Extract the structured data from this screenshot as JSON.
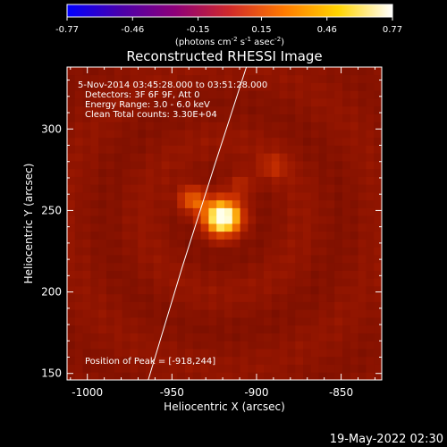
{
  "chart_data": {
    "type": "heatmap",
    "title": "Reconstructed RHESSI Image",
    "colorbar": {
      "ticks": [
        "-0.77",
        "-0.46",
        "-0.15",
        "0.15",
        "0.46",
        "0.77"
      ],
      "range": [
        -0.77,
        0.77
      ],
      "label_main": "(photons cm",
      "label_exp1": "-2",
      "label_s": " s",
      "label_exp2": "-1",
      "label_asec": " asec",
      "label_exp3": "-2",
      "label_close": ")",
      "colormap": [
        "#0000ff",
        "#4b00aa",
        "#8e0078",
        "#d02a2a",
        "#ff7a00",
        "#ffd400",
        "#ffffff"
      ]
    },
    "info": [
      "5-Nov-2014 03:45:28.000 to 03:51:28.000",
      "Detectors: 3F 6F 9F, Att 0",
      "Energy Range: 3.0 - 6.0 keV",
      "Clean    Total counts: 3.30E+04"
    ],
    "peak_label": "Position of Peak = [-918,244]",
    "xlabel": "Heliocentric X (arcsec)",
    "ylabel": "Heliocentric Y (arcsec)",
    "xlim": [
      -1012,
      -826
    ],
    "ylim": [
      146,
      338
    ],
    "xticks": [
      -1000,
      -950,
      -900,
      -850
    ],
    "xtick_labels": [
      "-1000",
      "-950",
      "-900",
      "-850"
    ],
    "yticks": [
      150,
      200,
      250,
      300
    ],
    "ytick_labels": [
      "150",
      "200",
      "250",
      "300"
    ],
    "sources": [
      {
        "x": -920,
        "y": 246,
        "peak": 1.0
      },
      {
        "x": -938,
        "y": 257,
        "peak": 0.5
      },
      {
        "x": -909,
        "y": 266,
        "peak": 0.22
      },
      {
        "x": -890,
        "y": 277,
        "peak": 0.2
      }
    ],
    "limb_line": [
      [
        -964,
        146
      ],
      [
        -944,
        215
      ],
      [
        -925,
        277
      ],
      [
        -906,
        338
      ]
    ],
    "timestamp": "19-May-2022 02:30"
  }
}
